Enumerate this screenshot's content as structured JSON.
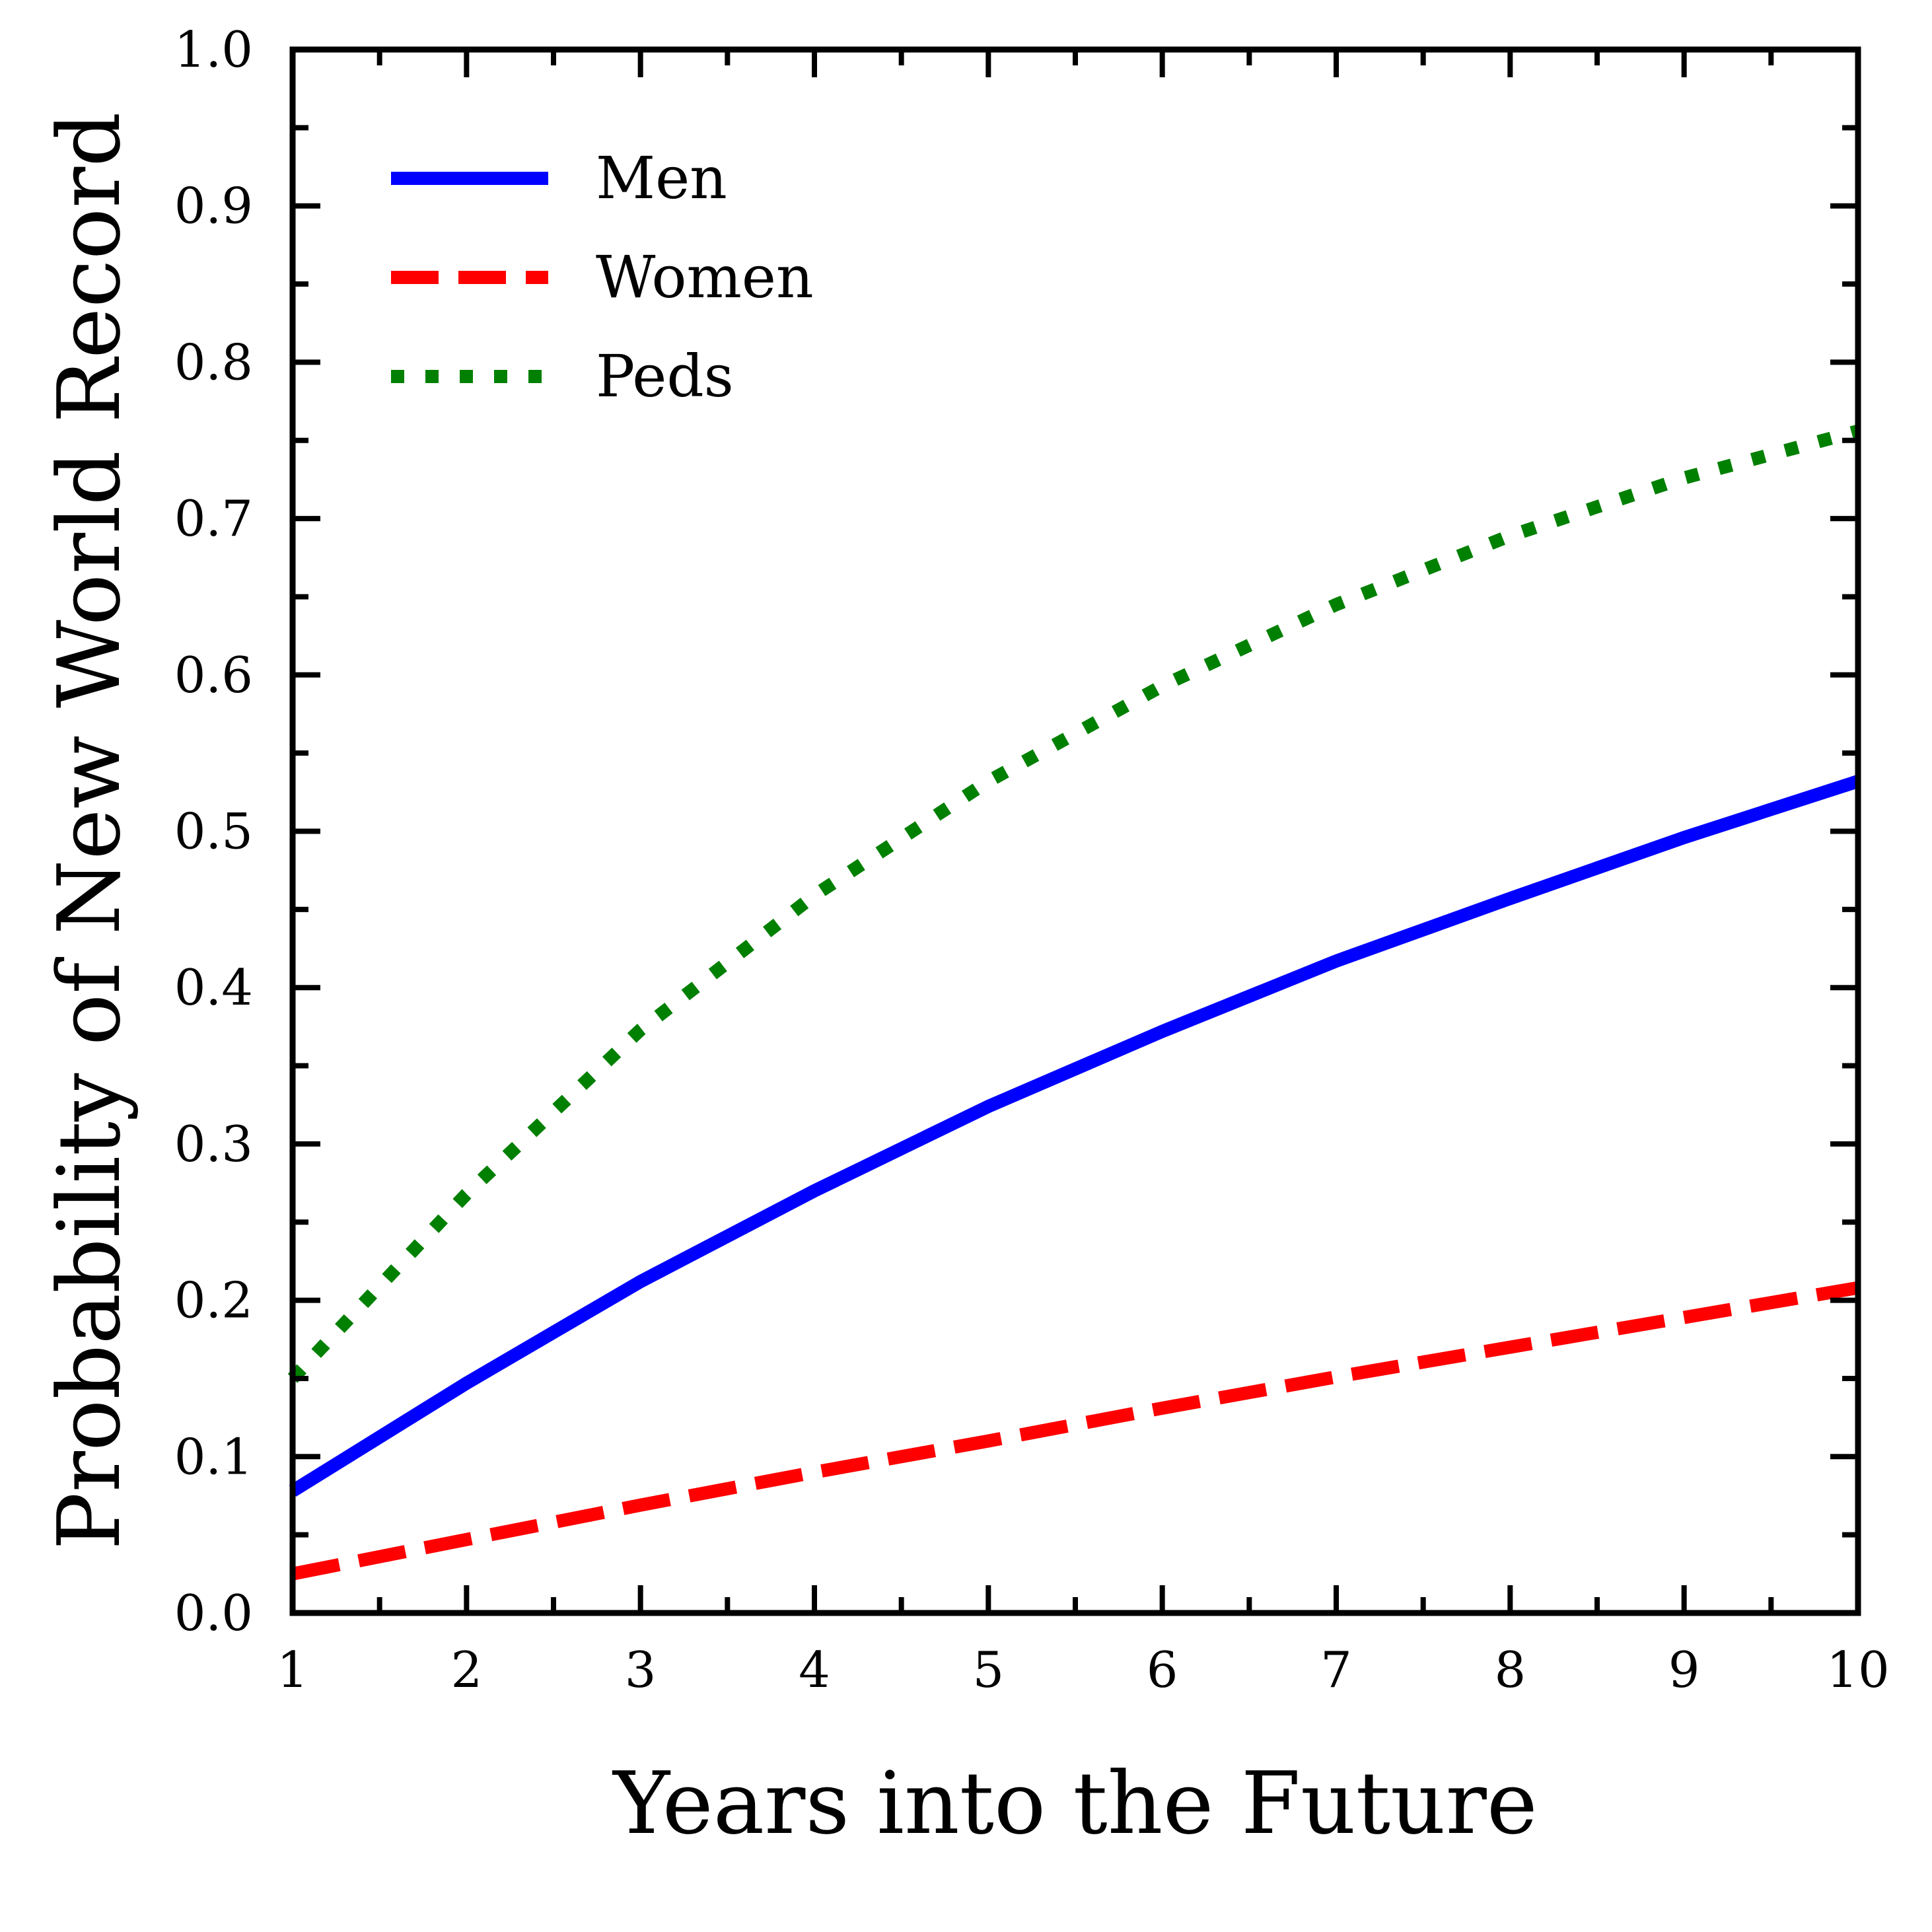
{
  "chart_data": {
    "type": "line",
    "title": "",
    "xlabel": "Years into the Future",
    "ylabel": "Probability of New World Record",
    "xlim": [
      1,
      10
    ],
    "ylim": [
      0.0,
      1.0
    ],
    "x": [
      1,
      2,
      3,
      4,
      5,
      6,
      7,
      8,
      9,
      10
    ],
    "xticks": [
      "1",
      "2",
      "3",
      "4",
      "5",
      "6",
      "7",
      "8",
      "9",
      "10"
    ],
    "yticks": [
      "0.0",
      "0.1",
      "0.2",
      "0.3",
      "0.4",
      "0.5",
      "0.6",
      "0.7",
      "0.8",
      "0.9",
      "1.0"
    ],
    "grid": false,
    "legend_position": "top-left",
    "series": [
      {
        "name": "Men",
        "color": "#0000ff",
        "style": "solid",
        "values": [
          0.078,
          0.147,
          0.212,
          0.27,
          0.324,
          0.372,
          0.417,
          0.457,
          0.496,
          0.532
        ]
      },
      {
        "name": "Women",
        "color": "#ff0000",
        "style": "dashed",
        "values": [
          0.025,
          0.047,
          0.069,
          0.09,
          0.11,
          0.131,
          0.151,
          0.17,
          0.189,
          0.208
        ]
      },
      {
        "name": "Peds",
        "color": "#008000",
        "style": "dotted",
        "values": [
          0.15,
          0.268,
          0.373,
          0.459,
          0.532,
          0.593,
          0.645,
          0.689,
          0.726,
          0.756
        ]
      }
    ]
  }
}
